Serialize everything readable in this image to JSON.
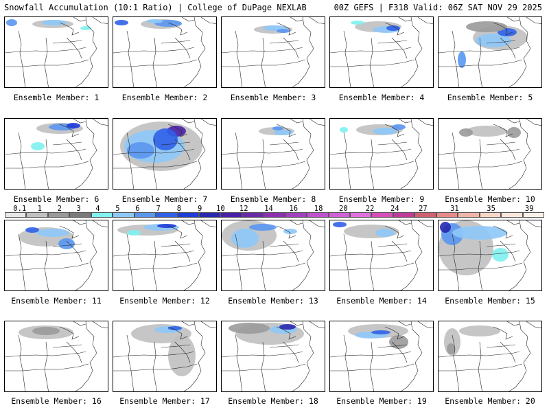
{
  "header": {
    "left": "Snowfall Accumulation (10:1 Ratio) | College of DuPage NEXLAB",
    "right": "00Z GEFS | F318 Valid: 06Z SAT NOV 29 2025"
  },
  "legend": {
    "labels": [
      "0.1",
      "1",
      "2",
      "3",
      "4",
      "5",
      "6",
      "7",
      "8",
      "9",
      "10",
      "12",
      "14",
      "16",
      "18",
      "20",
      "22",
      "24",
      "27",
      "31",
      "35",
      "39"
    ],
    "colors": [
      "#e6e6e6",
      "#c0c0c0",
      "#9a9a9a",
      "#7a7a7a",
      "#80f0f0",
      "#8ec8f8",
      "#5a96f0",
      "#3060e8",
      "#1e3cd8",
      "#2828b0",
      "#4a20a8",
      "#6a2aa8",
      "#8c30b0",
      "#a040c0",
      "#c050d0",
      "#d060d8",
      "#e070e0",
      "#d84cb8",
      "#c03c98",
      "#d06070",
      "#e88a88",
      "#f0b4a8",
      "#f8d6c6",
      "#fbe6dc",
      "#fdf2ea"
    ]
  },
  "panels": [
    {
      "label": "Ensemble Member: 1"
    },
    {
      "label": "Ensemble Member: 2"
    },
    {
      "label": "Ensemble Member: 3"
    },
    {
      "label": "Ensemble Member: 4"
    },
    {
      "label": "Ensemble Member: 5"
    },
    {
      "label": "Ensemble Member: 6"
    },
    {
      "label": "Ensemble Member: 7"
    },
    {
      "label": "Ensemble Member: 8"
    },
    {
      "label": "Ensemble Member: 9"
    },
    {
      "label": "Ensemble Member: 10"
    },
    {
      "label": "Ensemble Member: 11"
    },
    {
      "label": "Ensemble Member: 12"
    },
    {
      "label": "Ensemble Member: 13"
    },
    {
      "label": "Ensemble Member: 14"
    },
    {
      "label": "Ensemble Member: 15"
    },
    {
      "label": "Ensemble Member: 16"
    },
    {
      "label": "Ensemble Member: 17"
    },
    {
      "label": "Ensemble Member: 18"
    },
    {
      "label": "Ensemble Member: 19"
    },
    {
      "label": "Ensemble Member: 20"
    }
  ]
}
